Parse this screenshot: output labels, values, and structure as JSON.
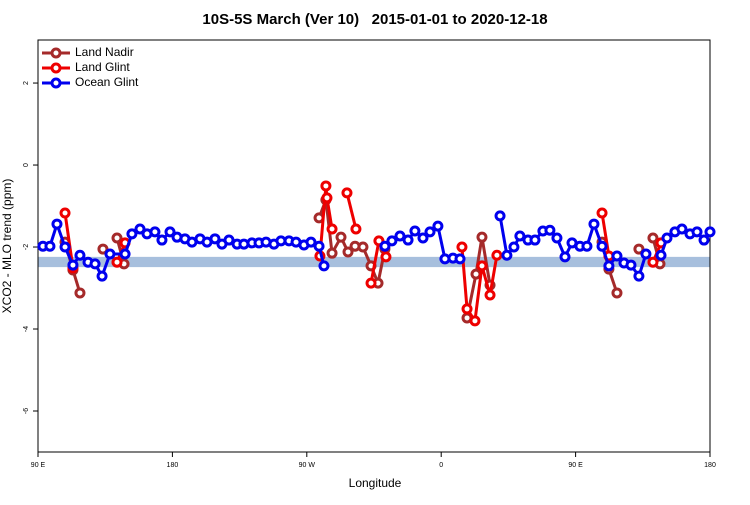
{
  "chart_data": {
    "type": "line",
    "title": "10S-5S March (Ver 10)   2015-01-01 to 2020-12-18",
    "x_label": "Longitude",
    "y_label": "XCO2 - MLO trend (ppm)",
    "xlim": [
      90,
      540
    ],
    "ylim": [
      -7,
      3.05
    ],
    "xticks": [
      {
        "value": 90,
        "label": "90 E"
      },
      180,
      {
        "value": 270,
        "label": "90 W"
      },
      {
        "value": 360,
        "label": "0"
      },
      {
        "value": 450,
        "label": "90 E"
      },
      {
        "value": 540,
        "label": "180"
      }
    ],
    "yticks": [
      2,
      0,
      -2,
      -4,
      -6
    ],
    "band": [
      -2.49,
      -2.24
    ],
    "band_color": "#a7bfdd",
    "legend": "top-left",
    "series": [
      {
        "name": "Land Nadir",
        "color": "#a52a2a",
        "x": [
          108.1,
          113.4,
          118.1,
          null,
          133.5,
          null,
          142.9,
          147.6,
          null,
          278.2,
          282.8,
          286.9,
          292.9,
          297.6,
          302.3,
          307.6,
          313.0,
          317.7,
          322.3,
          null,
          377.3,
          383.3,
          387.3,
          392.7,
          null,
          467.7,
          472.3,
          477.7,
          null,
          492.4,
          null,
          501.8,
          506.5
        ],
        "values": [
          -1.88,
          -2.56,
          -3.12,
          null,
          -2.05,
          null,
          -1.78,
          -2.41,
          null,
          -1.29,
          -0.85,
          -2.15,
          -1.76,
          -2.12,
          -1.98,
          -2.0,
          -2.46,
          -2.88,
          -2.05,
          null,
          -3.73,
          -2.66,
          -1.76,
          -2.93,
          null,
          -1.88,
          -2.54,
          -3.12,
          null,
          -2.05,
          null,
          -1.78,
          -2.41
        ]
      },
      {
        "name": "Land Glint",
        "color": "#ee0000",
        "x": [
          108.1,
          113.4,
          null,
          142.9,
          148.3,
          null,
          278.8,
          282.8,
          283.5,
          286.9,
          null,
          296.9,
          302.9,
          null,
          313.0,
          318.3,
          323.0,
          null,
          373.9,
          377.3,
          382.6,
          387.3,
          392.7,
          397.3,
          null,
          467.7,
          472.3,
          null,
          501.8,
          507.2
        ],
        "values": [
          -1.17,
          -2.51,
          null,
          -2.37,
          -1.9,
          null,
          -2.22,
          -0.51,
          -0.8,
          -1.56,
          null,
          -0.68,
          -1.56,
          null,
          -2.88,
          -1.85,
          -2.24,
          null,
          -2.0,
          -3.51,
          -3.8,
          -2.46,
          -3.17,
          -2.2,
          null,
          -1.17,
          -2.22,
          null,
          -2.37,
          -1.9
        ]
      },
      {
        "name": "Ocean Glint",
        "color": "#0000ee",
        "x": [
          93.3,
          98.0,
          102.7,
          108.1,
          113.4,
          118.1,
          123.5,
          128.2,
          132.9,
          138.2,
          148.3,
          152.9,
          158.3,
          163.0,
          168.3,
          173.0,
          178.4,
          183.1,
          188.4,
          193.1,
          198.5,
          203.2,
          208.5,
          213.2,
          217.9,
          223.3,
          227.9,
          233.3,
          238.0,
          242.7,
          248.0,
          252.7,
          258.1,
          262.8,
          268.1,
          272.8,
          278.2,
          281.5,
          null,
          322.3,
          327.0,
          332.4,
          337.8,
          342.4,
          347.8,
          352.5,
          357.8,
          362.5,
          367.9,
          372.6,
          null,
          399.4,
          404.0,
          408.7,
          412.7,
          418.1,
          422.8,
          428.1,
          432.8,
          437.5,
          442.9,
          447.6,
          452.9,
          457.6,
          462.3,
          467.7,
          472.3,
          477.7,
          482.4,
          487.1,
          492.4,
          497.1,
          null,
          507.2,
          511.2,
          516.5,
          521.2,
          526.6,
          531.3,
          536.0,
          540
        ],
        "values": [
          -1.98,
          -1.98,
          -1.44,
          -2.0,
          -2.44,
          -2.2,
          -2.37,
          -2.41,
          -2.71,
          -2.17,
          -2.17,
          -1.68,
          -1.56,
          -1.68,
          -1.63,
          -1.83,
          -1.63,
          -1.76,
          -1.8,
          -1.88,
          -1.8,
          -1.88,
          -1.8,
          -1.93,
          -1.83,
          -1.93,
          -1.93,
          -1.9,
          -1.9,
          -1.88,
          -1.93,
          -1.85,
          -1.85,
          -1.88,
          -1.95,
          -1.88,
          -1.98,
          -2.46,
          null,
          -1.98,
          -1.85,
          -1.73,
          -1.83,
          -1.61,
          -1.78,
          -1.63,
          -1.49,
          -2.29,
          -2.27,
          -2.29,
          null,
          -1.24,
          -2.2,
          -2.0,
          -1.73,
          -1.83,
          -1.83,
          -1.61,
          -1.59,
          -1.78,
          -2.24,
          -1.9,
          -1.98,
          -1.98,
          -1.44,
          -1.98,
          -2.46,
          -2.22,
          -2.39,
          -2.44,
          -2.71,
          -2.17,
          null,
          -2.2,
          -1.78,
          -1.63,
          -1.56,
          -1.68,
          -1.63,
          -1.83,
          -1.63
        ]
      }
    ]
  }
}
